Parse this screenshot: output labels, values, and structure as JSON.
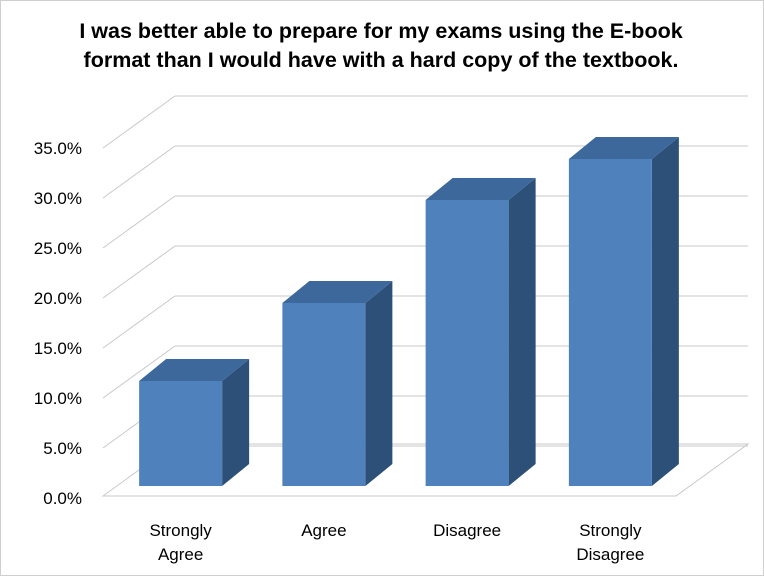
{
  "chart_data": {
    "type": "bar",
    "title": "I was better able to prepare for my exams using the E-book\nformat than I would have with a hard copy of the textbook.",
    "xlabel": "",
    "ylabel": "",
    "categories": [
      [
        "Strongly",
        "Agree"
      ],
      [
        "Agree"
      ],
      [
        "Disagree"
      ],
      [
        "Strongly",
        "Disagree"
      ]
    ],
    "values": [
      10.5,
      18.3,
      28.6,
      32.7
    ],
    "ylim": [
      0,
      35
    ],
    "y_ticks": [
      "0.0%",
      "5.0%",
      "10.0%",
      "15.0%",
      "20.0%",
      "25.0%",
      "30.0%",
      "35.0%"
    ],
    "y_tick_values": [
      0,
      5,
      10,
      15,
      20,
      25,
      30,
      35
    ],
    "grid": true,
    "three_d": true,
    "colors": {
      "bar_front": "#4f81bd",
      "bar_top": "#3d689c",
      "bar_side": "#2d5079",
      "grid": "#c8c8c8",
      "floor": "#c8c8c8"
    }
  }
}
